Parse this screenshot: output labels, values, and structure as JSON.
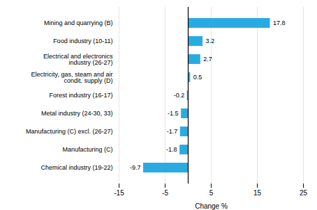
{
  "chart_data": {
    "type": "bar",
    "orientation": "horizontal",
    "categories": [
      "Chemical industry (19-22)",
      "Manufacturing (C)",
      "Manufacturing (C) excl. (26-27)",
      "Metal industry (24-30, 33)",
      "Forest industry (16-17)",
      "Electricity, gas, steam and air condit. supply (D)",
      "Electrical and electronics industry (26-27)",
      "Food industry (10-11)",
      "Mining and quarrying (B)"
    ],
    "values": [
      -9.7,
      -1.8,
      -1.7,
      -1.5,
      -0.2,
      0.5,
      2.7,
      3.2,
      17.8
    ],
    "color": "#29abe2",
    "xlabel": "Change %",
    "xlim": [
      -15,
      25
    ],
    "xticks": [
      -15,
      -5,
      5,
      15,
      25
    ],
    "grid": true,
    "data_labels": true
  }
}
